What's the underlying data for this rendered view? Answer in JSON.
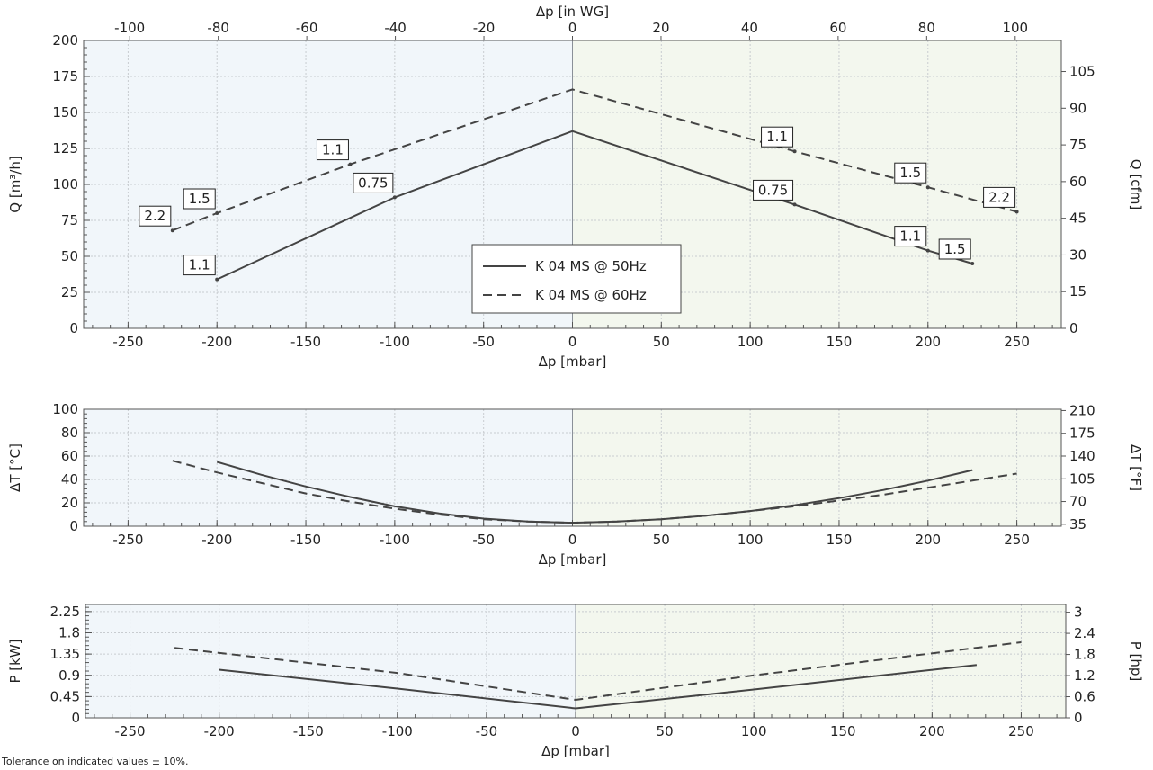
{
  "footnote": "Tolerance on indicated values ± 10%.",
  "colors": {
    "negative_bg": "#f1f6fa",
    "positive_bg": "#f3f7ee",
    "line": "#444444",
    "grid": "#c8ccd0"
  },
  "chart_data": [
    {
      "type": "line",
      "id": "flow",
      "title": "",
      "xlabel": "Δp [mbar]",
      "x2label": "Δp [in WG]",
      "ylabel": "Q [m³/h]",
      "y2label": "Q [cfm]",
      "xlim": [
        -275,
        275
      ],
      "ylim": [
        0,
        200
      ],
      "x2lim": [
        -110.4,
        110.4
      ],
      "y2lim": [
        0,
        117.7
      ],
      "xticks": [
        -250,
        -200,
        -150,
        -100,
        -50,
        0,
        50,
        100,
        150,
        200,
        250
      ],
      "yticks": [
        0,
        25,
        50,
        75,
        100,
        125,
        150,
        175,
        200
      ],
      "x2ticks": [
        -100,
        -80,
        -60,
        -40,
        -20,
        0,
        20,
        40,
        60,
        80,
        100
      ],
      "y2ticks": [
        0,
        15,
        30,
        45,
        60,
        75,
        90,
        105
      ],
      "grid": true,
      "legend": "center-bottom",
      "series": [
        {
          "name": "K 04 MS @ 50Hz",
          "style": "solid",
          "points": [
            [
              -200,
              34
            ],
            [
              -100,
              91
            ],
            [
              0,
              137
            ],
            [
              125,
              86
            ],
            [
              200,
              54
            ],
            [
              225,
              45
            ]
          ],
          "labels": [
            {
              "x": -200,
              "y": 34,
              "text": "1.1"
            },
            {
              "x": -100,
              "y": 91,
              "text": "0.75"
            },
            {
              "x": 125,
              "y": 86,
              "text": "0.75"
            },
            {
              "x": 200,
              "y": 54,
              "text": "1.1"
            },
            {
              "x": 225,
              "y": 45,
              "text": "1.5"
            }
          ]
        },
        {
          "name": "K 04 MS @ 60Hz",
          "style": "dashed",
          "points": [
            [
              -225,
              68
            ],
            [
              -200,
              80
            ],
            [
              -125,
              114
            ],
            [
              0,
              166
            ],
            [
              125,
              123
            ],
            [
              200,
              98
            ],
            [
              250,
              81
            ]
          ],
          "labels": [
            {
              "x": -225,
              "y": 68,
              "text": "2.2"
            },
            {
              "x": -200,
              "y": 80,
              "text": "1.5"
            },
            {
              "x": -125,
              "y": 114,
              "text": "1.1"
            },
            {
              "x": 125,
              "y": 123,
              "text": "1.1"
            },
            {
              "x": 200,
              "y": 98,
              "text": "1.5"
            },
            {
              "x": 250,
              "y": 81,
              "text": "2.2"
            }
          ]
        }
      ]
    },
    {
      "type": "line",
      "id": "temperature",
      "title": "",
      "xlabel": "Δp [mbar]",
      "ylabel": "ΔT [°C]",
      "y2label": "ΔT [°F]",
      "xlim": [
        -275,
        275
      ],
      "ylim": [
        0,
        100
      ],
      "y2lim": [
        32,
        212
      ],
      "xticks": [
        -250,
        -200,
        -150,
        -100,
        -50,
        0,
        50,
        100,
        150,
        200,
        250
      ],
      "yticks": [
        0,
        20,
        40,
        60,
        80,
        100
      ],
      "y2ticks": [
        35,
        70,
        105,
        140,
        175,
        210
      ],
      "grid": true,
      "series": [
        {
          "name": "K 04 MS @ 50Hz",
          "style": "solid",
          "points": [
            [
              -200,
              55
            ],
            [
              -175,
              44
            ],
            [
              -150,
              34
            ],
            [
              -125,
              25
            ],
            [
              -100,
              17
            ],
            [
              -75,
              11
            ],
            [
              -50,
              6.5
            ],
            [
              -25,
              4
            ],
            [
              0,
              3
            ],
            [
              25,
              4
            ],
            [
              50,
              6
            ],
            [
              75,
              9
            ],
            [
              100,
              13
            ],
            [
              125,
              18
            ],
            [
              150,
              24
            ],
            [
              175,
              31
            ],
            [
              200,
              39
            ],
            [
              225,
              48
            ]
          ]
        },
        {
          "name": "K 04 MS @ 60Hz",
          "style": "dashed",
          "points": [
            [
              -225,
              56
            ],
            [
              -200,
              46
            ],
            [
              -175,
              37
            ],
            [
              -150,
              28
            ],
            [
              -125,
              21
            ],
            [
              -100,
              15
            ],
            [
              -75,
              10
            ],
            [
              -50,
              6
            ],
            [
              -25,
              4
            ],
            [
              0,
              3
            ],
            [
              25,
              4
            ],
            [
              50,
              6
            ],
            [
              75,
              9
            ],
            [
              100,
              13
            ],
            [
              125,
              17
            ],
            [
              150,
              22
            ],
            [
              175,
              27
            ],
            [
              200,
              33
            ],
            [
              225,
              39
            ],
            [
              250,
              45
            ]
          ]
        }
      ]
    },
    {
      "type": "line",
      "id": "power",
      "title": "",
      "xlabel": "Δp [mbar]",
      "ylabel": "P [kW]",
      "y2label": "P [hp]",
      "xlim": [
        -275,
        275
      ],
      "ylim": [
        0,
        2.4
      ],
      "y2lim": [
        0,
        3.22
      ],
      "xticks": [
        -250,
        -200,
        -150,
        -100,
        -50,
        0,
        50,
        100,
        150,
        200,
        250
      ],
      "yticks": [
        0,
        0.45,
        0.9,
        1.35,
        1.8,
        2.25
      ],
      "yticklabels": [
        "0",
        "0.45",
        "0.9",
        "1.35",
        "1.8",
        "2.25"
      ],
      "y2ticks": [
        0,
        0.6,
        1.2,
        1.8,
        2.4,
        3
      ],
      "y2ticklabels": [
        "0",
        "0.6",
        "1.2",
        "1.8",
        "2.4",
        "3"
      ],
      "grid": true,
      "series": [
        {
          "name": "K 04 MS @ 50Hz",
          "style": "solid",
          "points": [
            [
              -200,
              1.02
            ],
            [
              -100,
              0.62
            ],
            [
              0,
              0.2
            ],
            [
              100,
              0.6
            ],
            [
              225,
              1.12
            ]
          ]
        },
        {
          "name": "K 04 MS @ 60Hz",
          "style": "dashed",
          "points": [
            [
              -225,
              1.48
            ],
            [
              -100,
              0.95
            ],
            [
              0,
              0.38
            ],
            [
              100,
              0.9
            ],
            [
              250,
              1.6
            ]
          ]
        }
      ]
    }
  ]
}
